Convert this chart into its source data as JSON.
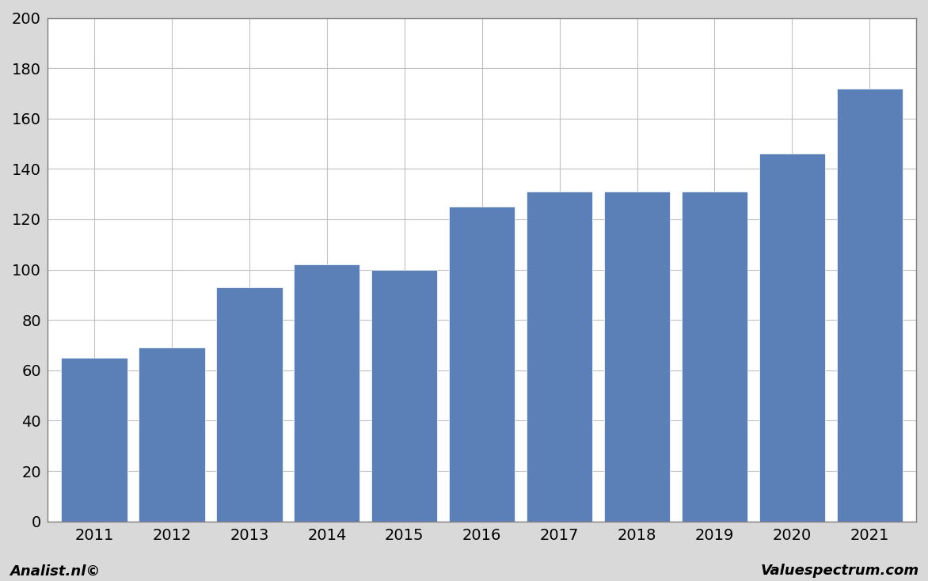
{
  "years": [
    "2011",
    "2012",
    "2013",
    "2014",
    "2015",
    "2016",
    "2017",
    "2018",
    "2019",
    "2020",
    "2021"
  ],
  "values": [
    65,
    69,
    93,
    102,
    100,
    125,
    131,
    131,
    131,
    146,
    172
  ],
  "bar_color": "#5b80b8",
  "background_color": "#d9d9d9",
  "plot_bg_color": "#ffffff",
  "ylim": [
    0,
    200
  ],
  "yticks": [
    0,
    20,
    40,
    60,
    80,
    100,
    120,
    140,
    160,
    180,
    200
  ],
  "grid_color": "#c0c0c0",
  "border_color": "#7f7f7f",
  "footer_left": "Analist.nl©",
  "footer_right": "Valuespectrum.com",
  "footer_fontsize": 13,
  "tick_fontsize": 14,
  "bar_width": 0.85
}
